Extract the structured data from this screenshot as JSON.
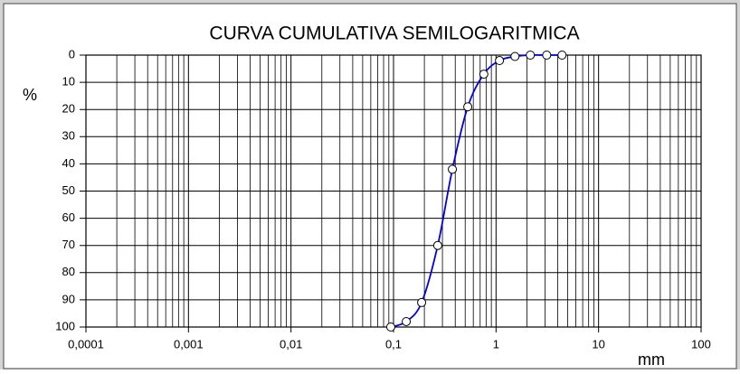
{
  "chart_data": {
    "type": "line",
    "title": "CURVA CUMULATIVA SEMILOGARITMICA",
    "ylabel": "%",
    "xlabel": "mm",
    "x_log": true,
    "y_inverted": true,
    "grid": true,
    "xlim": [
      0.0001,
      100
    ],
    "xticks": [
      {
        "value": 0.0001,
        "label": "0,0001"
      },
      {
        "value": 0.001,
        "label": "0,001"
      },
      {
        "value": 0.01,
        "label": "0,01"
      },
      {
        "value": 0.1,
        "label": "0,1"
      },
      1,
      10,
      100
    ],
    "ylim": [
      0,
      100
    ],
    "yticks": [
      0,
      10,
      20,
      30,
      40,
      50,
      60,
      70,
      80,
      90,
      100
    ],
    "series": [
      {
        "color": "#0000e0",
        "x": [
          0.094,
          0.133,
          0.188,
          0.27,
          0.375,
          0.53,
          0.76,
          1.08,
          1.53,
          2.16,
          3.12,
          4.4
        ],
        "values": [
          100,
          98,
          91,
          70,
          42,
          19,
          7,
          2,
          0.5,
          0,
          0,
          0
        ]
      }
    ]
  }
}
